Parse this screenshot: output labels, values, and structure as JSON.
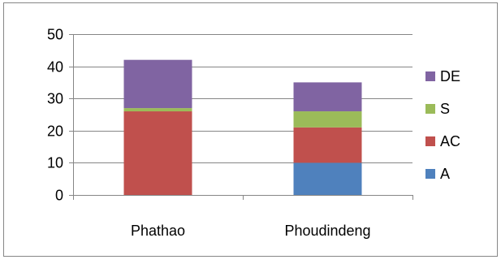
{
  "chart_data": {
    "type": "bar",
    "stacked": true,
    "categories": [
      "Phathao",
      "Phoudindeng"
    ],
    "series": [
      {
        "name": "A",
        "color": "#4f81bd",
        "values": [
          0,
          10
        ]
      },
      {
        "name": "AC",
        "color": "#c0504d",
        "values": [
          26,
          11
        ]
      },
      {
        "name": "S",
        "color": "#9bbb59",
        "values": [
          1,
          5
        ]
      },
      {
        "name": "DE",
        "color": "#8064a2",
        "values": [
          15,
          9
        ]
      }
    ],
    "ylim": [
      0,
      50
    ],
    "yticks": [
      "0",
      "10",
      "20",
      "30",
      "40",
      "50"
    ],
    "grid": true,
    "legend_position": "right"
  }
}
